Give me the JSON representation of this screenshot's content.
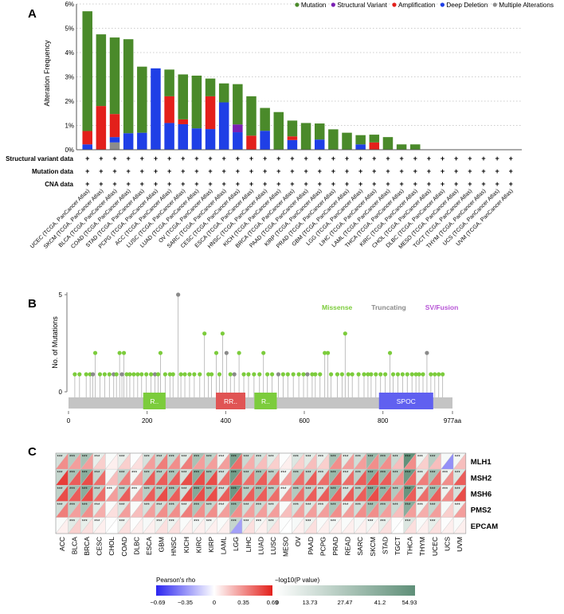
{
  "panel_labels": {
    "a": "A",
    "b": "B",
    "c": "C"
  },
  "colors": {
    "mutation": "#4a8a2a",
    "structural_variant": "#7a1fb3",
    "amplification": "#e3201b",
    "deep_deletion": "#1f3fe6",
    "multiple": "#8c8c8c",
    "missense": "#7ccc3c",
    "truncating": "#8a8a8a",
    "sv_fusion": "#b755d6",
    "domain_r": "#7ccc3c",
    "domain_rr": "#e05454",
    "domain_spoc": "#6060f0",
    "backbone": "#c4c4c4"
  },
  "chart_data": [
    {
      "type": "bar",
      "title": "",
      "xlabel": "",
      "ylabel": "Alteration Frequency",
      "ylim": [
        0,
        6
      ],
      "yticks": [
        "0%",
        "1%",
        "2%",
        "3%",
        "4%",
        "5%",
        "6%"
      ],
      "grid": true,
      "stacked": true,
      "legend_position": "top-right",
      "legend": [
        "Mutation",
        "Structural Variant",
        "Amplification",
        "Deep Deletion",
        "Multiple Alterations"
      ],
      "categories": [
        "UCEC (TCGA, PanCancer Atlas)",
        "SKCM (TCGA, PanCancer Atlas)",
        "BLCA (TCGA, PanCancer Atlas)",
        "COAD (TCGA, PanCancer Atlas)",
        "STAD (TCGA, PanCancer Atlas)",
        "PCPG (TCGA, PanCancer Atlas)",
        "ACC (TCGA, PanCancer Atlas)",
        "LUSC (TCGA, PanCancer Atlas)",
        "LUAD (TCGA, PanCancer Atlas)",
        "OV (TCGA, PanCancer Atlas)",
        "SARC (TCGA, PanCancer Atlas)",
        "CESC (TCGA, PanCancer Atlas)",
        "ESCA (TCGA, PanCancer Atlas)",
        "HNSC (TCGA, PanCancer Atlas)",
        "KICH (TCGA, PanCancer Atlas)",
        "BRCA (TCGA, PanCancer Atlas)",
        "PAAD (TCGA, PanCancer Atlas)",
        "KIRP (TCGA, PanCancer Atlas)",
        "PRAD (TCGA, PanCancer Atlas)",
        "GBM (TCGA, PanCancer Atlas)",
        "LGG (TCGA, PanCancer Atlas)",
        "LIHC (TCGA, PanCancer Atlas)",
        "LAML (TCGA, PanCancer Atlas)",
        "THCA (TCGA, PanCancer Atlas)",
        "KIRC (TCGA, PanCancer Atlas)",
        "CHOL (TCGA, PanCancer Atlas)",
        "DLBC (TCGA, PanCancer Atlas)",
        "MESO (TCGA, PanCancer Atlas)",
        "TGCT (TCGA, PanCancer Atlas)",
        "THYM (TCGA, PanCancer Atlas)",
        "UCS (TCGA, PanCancer Atlas)",
        "UVM (TCGA, PanCancer Atlas)"
      ],
      "series": [
        {
          "name": "Multiple Alterations",
          "values": [
            0,
            0,
            0.3,
            0,
            0,
            0,
            0,
            0,
            0,
            0,
            0,
            0,
            0,
            0,
            0,
            0,
            0,
            0,
            0,
            0,
            0,
            0,
            0,
            0,
            0,
            0,
            0,
            0,
            0,
            0,
            0,
            0
          ]
        },
        {
          "name": "Deep Deletion",
          "values": [
            0.22,
            0,
            0.22,
            0.68,
            0.7,
            3.35,
            1.1,
            1.05,
            0.88,
            0.85,
            1.95,
            0.72,
            0,
            0.78,
            0,
            0.4,
            0,
            0.42,
            0,
            0,
            0.22,
            0,
            0,
            0,
            0,
            0,
            0,
            0,
            0,
            0,
            0,
            0
          ]
        },
        {
          "name": "Amplification",
          "values": [
            0.55,
            1.8,
            0.95,
            0,
            0,
            0,
            1.1,
            0.2,
            0,
            1.35,
            0,
            0,
            0.58,
            0,
            0,
            0.15,
            0,
            0,
            0,
            0,
            0,
            0.3,
            0,
            0,
            0,
            0,
            0,
            0,
            0,
            0,
            0,
            0
          ]
        },
        {
          "name": "Structural Variant",
          "values": [
            0,
            0,
            0,
            0,
            0,
            0,
            0,
            0,
            0,
            0,
            0,
            0.32,
            0,
            0,
            0,
            0,
            0,
            0,
            0,
            0,
            0,
            0,
            0,
            0,
            0,
            0,
            0,
            0,
            0,
            0,
            0,
            0
          ]
        },
        {
          "name": "Mutation",
          "values": [
            4.93,
            2.95,
            3.15,
            3.87,
            2.72,
            0,
            1.1,
            1.85,
            2.17,
            0.73,
            0.78,
            1.66,
            1.62,
            0.94,
            1.55,
            0.65,
            1.1,
            0.66,
            0.84,
            0.7,
            0.38,
            0.32,
            0.52,
            0.22,
            0.22,
            0,
            0,
            0,
            0,
            0,
            0,
            0
          ]
        }
      ],
      "row_labels": [
        "Structural variant data",
        "Mutation data",
        "CNA data"
      ],
      "row_mark": "+"
    },
    {
      "type": "scatter",
      "title": "",
      "xlabel": "",
      "ylabel": "No. of Mutations",
      "xlim": [
        0,
        977
      ],
      "ylim": [
        0,
        5
      ],
      "yticks": [
        "0",
        "5"
      ],
      "xticks": [
        "0",
        "200",
        "400",
        "600",
        "800",
        "977aa"
      ],
      "xtick_values": [
        0,
        200,
        400,
        600,
        800,
        977
      ],
      "legend": [
        "Missense",
        "Truncating",
        "SV/Fusion"
      ],
      "legend_position": "top-right",
      "domains": [
        {
          "label": "R..",
          "start": 190,
          "end": 247,
          "color": "domain_r"
        },
        {
          "label": "RR..",
          "start": 375,
          "end": 450,
          "color": "domain_rr"
        },
        {
          "label": "R..",
          "start": 473,
          "end": 530,
          "color": "domain_r"
        },
        {
          "label": "SPOC",
          "start": 790,
          "end": 928,
          "color": "domain_spoc"
        }
      ],
      "lollipops": [
        [
          16,
          1,
          "m"
        ],
        [
          28,
          1,
          "m"
        ],
        [
          45,
          1,
          "m"
        ],
        [
          55,
          1,
          "m"
        ],
        [
          62,
          1,
          "t"
        ],
        [
          68,
          2,
          "m"
        ],
        [
          80,
          1,
          "m"
        ],
        [
          92,
          1,
          "m"
        ],
        [
          104,
          1,
          "m"
        ],
        [
          115,
          1,
          "t"
        ],
        [
          122,
          1,
          "m"
        ],
        [
          130,
          2,
          "m"
        ],
        [
          136,
          1,
          "t"
        ],
        [
          141,
          2,
          "m"
        ],
        [
          148,
          1,
          "m"
        ],
        [
          156,
          1,
          "m"
        ],
        [
          166,
          1,
          "m"
        ],
        [
          176,
          1,
          "m"
        ],
        [
          186,
          1,
          "m"
        ],
        [
          198,
          1,
          "m"
        ],
        [
          210,
          1,
          "m"
        ],
        [
          220,
          1,
          "t"
        ],
        [
          228,
          1,
          "m"
        ],
        [
          234,
          2,
          "m"
        ],
        [
          246,
          1,
          "m"
        ],
        [
          258,
          1,
          "m"
        ],
        [
          266,
          1,
          "m"
        ],
        [
          279,
          5,
          "t"
        ],
        [
          286,
          1,
          "m"
        ],
        [
          296,
          1,
          "m"
        ],
        [
          308,
          1,
          "m"
        ],
        [
          320,
          1,
          "m"
        ],
        [
          334,
          1,
          "m"
        ],
        [
          346,
          3,
          "m"
        ],
        [
          356,
          1,
          "m"
        ],
        [
          364,
          1,
          "m"
        ],
        [
          376,
          2,
          "m"
        ],
        [
          384,
          1,
          "m"
        ],
        [
          392,
          3,
          "m"
        ],
        [
          402,
          2,
          "t"
        ],
        [
          412,
          1,
          "m"
        ],
        [
          422,
          1,
          "t"
        ],
        [
          434,
          2,
          "m"
        ],
        [
          446,
          1,
          "m"
        ],
        [
          458,
          1,
          "m"
        ],
        [
          472,
          1,
          "m"
        ],
        [
          486,
          1,
          "m"
        ],
        [
          496,
          2,
          "m"
        ],
        [
          506,
          1,
          "m"
        ],
        [
          518,
          1,
          "m"
        ],
        [
          534,
          1,
          "t"
        ],
        [
          546,
          1,
          "m"
        ],
        [
          558,
          1,
          "m"
        ],
        [
          572,
          1,
          "m"
        ],
        [
          586,
          1,
          "m"
        ],
        [
          598,
          1,
          "m"
        ],
        [
          608,
          1,
          "t"
        ],
        [
          620,
          1,
          "m"
        ],
        [
          628,
          1,
          "m"
        ],
        [
          640,
          1,
          "m"
        ],
        [
          652,
          2,
          "m"
        ],
        [
          660,
          2,
          "m"
        ],
        [
          668,
          1,
          "m"
        ],
        [
          684,
          1,
          "m"
        ],
        [
          696,
          1,
          "m"
        ],
        [
          704,
          3,
          "m"
        ],
        [
          712,
          1,
          "m"
        ],
        [
          722,
          1,
          "m"
        ],
        [
          738,
          1,
          "m"
        ],
        [
          752,
          1,
          "m"
        ],
        [
          762,
          1,
          "m"
        ],
        [
          770,
          1,
          "m"
        ],
        [
          782,
          1,
          "m"
        ],
        [
          794,
          1,
          "m"
        ],
        [
          806,
          1,
          "m"
        ],
        [
          818,
          2,
          "m"
        ],
        [
          826,
          1,
          "m"
        ],
        [
          838,
          1,
          "m"
        ],
        [
          850,
          1,
          "m"
        ],
        [
          862,
          1,
          "m"
        ],
        [
          874,
          1,
          "m"
        ],
        [
          884,
          1,
          "m"
        ],
        [
          892,
          1,
          "m"
        ],
        [
          902,
          1,
          "m"
        ],
        [
          912,
          2,
          "t"
        ],
        [
          922,
          1,
          "m"
        ],
        [
          932,
          1,
          "m"
        ],
        [
          942,
          1,
          "m"
        ],
        [
          952,
          1,
          "m"
        ]
      ]
    },
    {
      "type": "heatmap",
      "title": "",
      "xlabel": "",
      "ylabel": "",
      "columns": [
        "ACC",
        "BLCA",
        "BRCA",
        "CESC",
        "CHOL",
        "COAD",
        "DLBC",
        "ESCA",
        "GBM",
        "HNSC",
        "KICH",
        "KIRC",
        "KIRP",
        "LAML",
        "LGG",
        "LIHC",
        "LUAD",
        "LUSC",
        "MESO",
        "OV",
        "PAAD",
        "PCPG",
        "PRAD",
        "READ",
        "SARC",
        "SKCM",
        "STAD",
        "TGCT",
        "THCA",
        "THYM",
        "UCEC",
        "UCS",
        "UVM"
      ],
      "rows": [
        "MLH1",
        "MSH2",
        "MSH6",
        "PMS2",
        "EPCAM"
      ],
      "significance_mark": "***",
      "rho": [
        [
          0.35,
          0.3,
          0.3,
          0.15,
          0.05,
          0.15,
          0.1,
          0.3,
          0.4,
          0.35,
          0.4,
          0.3,
          0.3,
          0.3,
          0.45,
          0.25,
          0.2,
          0.15,
          0.05,
          0.15,
          0.2,
          0.15,
          0.35,
          0.3,
          0.3,
          0.35,
          0.35,
          0.2,
          0.35,
          0.15,
          0.2,
          -0.35,
          0.2
        ],
        [
          0.6,
          0.5,
          0.55,
          0.45,
          0.2,
          0.4,
          0.3,
          0.5,
          0.5,
          0.5,
          0.55,
          0.55,
          0.55,
          0.45,
          0.5,
          0.45,
          0.5,
          0.45,
          0.3,
          0.45,
          0.5,
          0.45,
          0.5,
          0.45,
          0.5,
          0.55,
          0.5,
          0.35,
          0.45,
          0.4,
          0.45,
          0.35,
          0.5
        ],
        [
          0.55,
          0.5,
          0.55,
          0.45,
          0.3,
          0.5,
          0.3,
          0.5,
          0.55,
          0.5,
          0.55,
          0.55,
          0.55,
          0.5,
          0.55,
          0.5,
          0.5,
          0.45,
          0.35,
          0.45,
          0.5,
          0.5,
          0.5,
          0.5,
          0.5,
          0.55,
          0.5,
          0.35,
          0.5,
          0.45,
          0.5,
          0.35,
          0.55
        ],
        [
          0.4,
          0.3,
          0.35,
          0.25,
          0.1,
          0.3,
          0.2,
          0.3,
          0.35,
          0.35,
          0.4,
          0.35,
          0.35,
          0.3,
          0.35,
          0.3,
          0.3,
          0.3,
          0.2,
          0.3,
          0.3,
          0.3,
          0.35,
          0.3,
          0.35,
          0.35,
          0.3,
          0.2,
          0.3,
          0.25,
          0.3,
          0.15,
          0.3
        ],
        [
          0.05,
          0.15,
          0.1,
          0.05,
          0.0,
          0.1,
          0.05,
          0.05,
          0.1,
          0.1,
          0.05,
          0.05,
          0.05,
          0.05,
          -0.3,
          0.1,
          0.05,
          0.1,
          0.0,
          0.05,
          0.1,
          0.05,
          0.05,
          0.05,
          0.05,
          0.05,
          0.1,
          0.0,
          0.1,
          0.05,
          0.1,
          0.05,
          0.05
        ]
      ],
      "logp": [
        [
          15,
          25,
          30,
          8,
          2,
          8,
          1,
          14,
          18,
          20,
          10,
          30,
          22,
          6,
          45,
          18,
          15,
          10,
          1,
          12,
          10,
          8,
          30,
          10,
          16,
          35,
          28,
          18,
          54,
          6,
          24,
          3,
          4
        ],
        [
          20,
          30,
          40,
          20,
          3,
          20,
          4,
          22,
          24,
          28,
          15,
          40,
          30,
          14,
          48,
          22,
          30,
          22,
          4,
          24,
          20,
          14,
          35,
          12,
          22,
          40,
          34,
          24,
          50,
          10,
          30,
          6,
          12
        ],
        [
          22,
          32,
          40,
          22,
          4,
          22,
          4,
          24,
          26,
          30,
          16,
          42,
          32,
          16,
          50,
          24,
          32,
          24,
          5,
          26,
          22,
          16,
          36,
          14,
          24,
          42,
          36,
          26,
          52,
          12,
          32,
          6,
          14
        ],
        [
          16,
          22,
          28,
          10,
          2,
          12,
          2,
          14,
          16,
          20,
          10,
          28,
          20,
          8,
          35,
          16,
          18,
          12,
          2,
          14,
          12,
          10,
          28,
          8,
          16,
          30,
          24,
          18,
          40,
          6,
          20,
          3,
          6
        ],
        [
          2,
          10,
          8,
          4,
          1,
          6,
          1,
          3,
          6,
          6,
          2,
          4,
          4,
          2,
          20,
          8,
          4,
          8,
          1,
          3,
          6,
          2,
          4,
          2,
          3,
          4,
          8,
          1,
          12,
          2,
          8,
          1,
          2
        ]
      ],
      "rho_scale": {
        "label": "Pearson's rho",
        "ticks": [
          "−0.69",
          "−0.35",
          "0",
          "0.35",
          "0.69"
        ],
        "range": [
          -0.69,
          0.69
        ]
      },
      "p_scale": {
        "label": "−log10(P value)",
        "ticks": [
          "0",
          "13.73",
          "27.47",
          "41.2",
          "54.93"
        ],
        "range": [
          0,
          54.93
        ]
      }
    }
  ]
}
